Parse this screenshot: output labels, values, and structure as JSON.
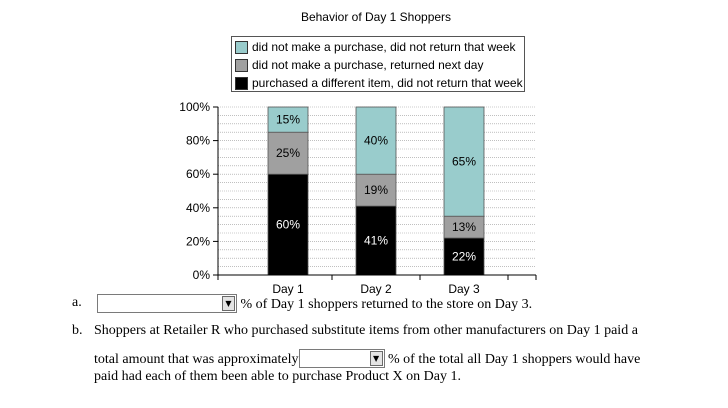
{
  "chart_data": {
    "type": "bar",
    "stacked": true,
    "title": "Behavior of Day 1 Shoppers",
    "categories": [
      "Day 1",
      "Day 2",
      "Day 3"
    ],
    "ylim": [
      0,
      100
    ],
    "yticks": [
      "0%",
      "20%",
      "40%",
      "60%",
      "80%",
      "100%"
    ],
    "grid": true,
    "legend_position": "top",
    "series": [
      {
        "name": "purchased a different item, did not return that week",
        "color": "#000000",
        "values": [
          60,
          41,
          22
        ],
        "labels": [
          "60%",
          "41%",
          "22%"
        ],
        "label_color": "#ffffff"
      },
      {
        "name": "did not make a purchase, returned next day",
        "color": "#a0a0a0",
        "values": [
          25,
          19,
          13
        ],
        "labels": [
          "25%",
          "19%",
          "13%"
        ],
        "label_color": "#000000"
      },
      {
        "name": "did not make a purchase, did not return that week",
        "color": "#99cccc",
        "values": [
          15,
          40,
          65
        ],
        "labels": [
          "15%",
          "40%",
          "65%"
        ],
        "label_color": "#000000"
      }
    ],
    "legend_order": [
      2,
      1,
      0
    ]
  },
  "questions": {
    "a": {
      "letter": "a.",
      "text_after": "% of Day 1 shoppers returned to the store on Day 3.",
      "dropdown_value": "",
      "dropdown_arrow": "▼"
    },
    "b": {
      "letter": "b.",
      "line1": "Shoppers at Retailer R who purchased substitute items from other manufacturers on Day 1 paid a",
      "text_before": "total amount that was approximately",
      "text_after": "% of the total all Day 1 shoppers would have",
      "line3": "paid had each of them been able to purchase Product X on Day 1.",
      "dropdown_value": "",
      "dropdown_arrow": "▼"
    }
  }
}
